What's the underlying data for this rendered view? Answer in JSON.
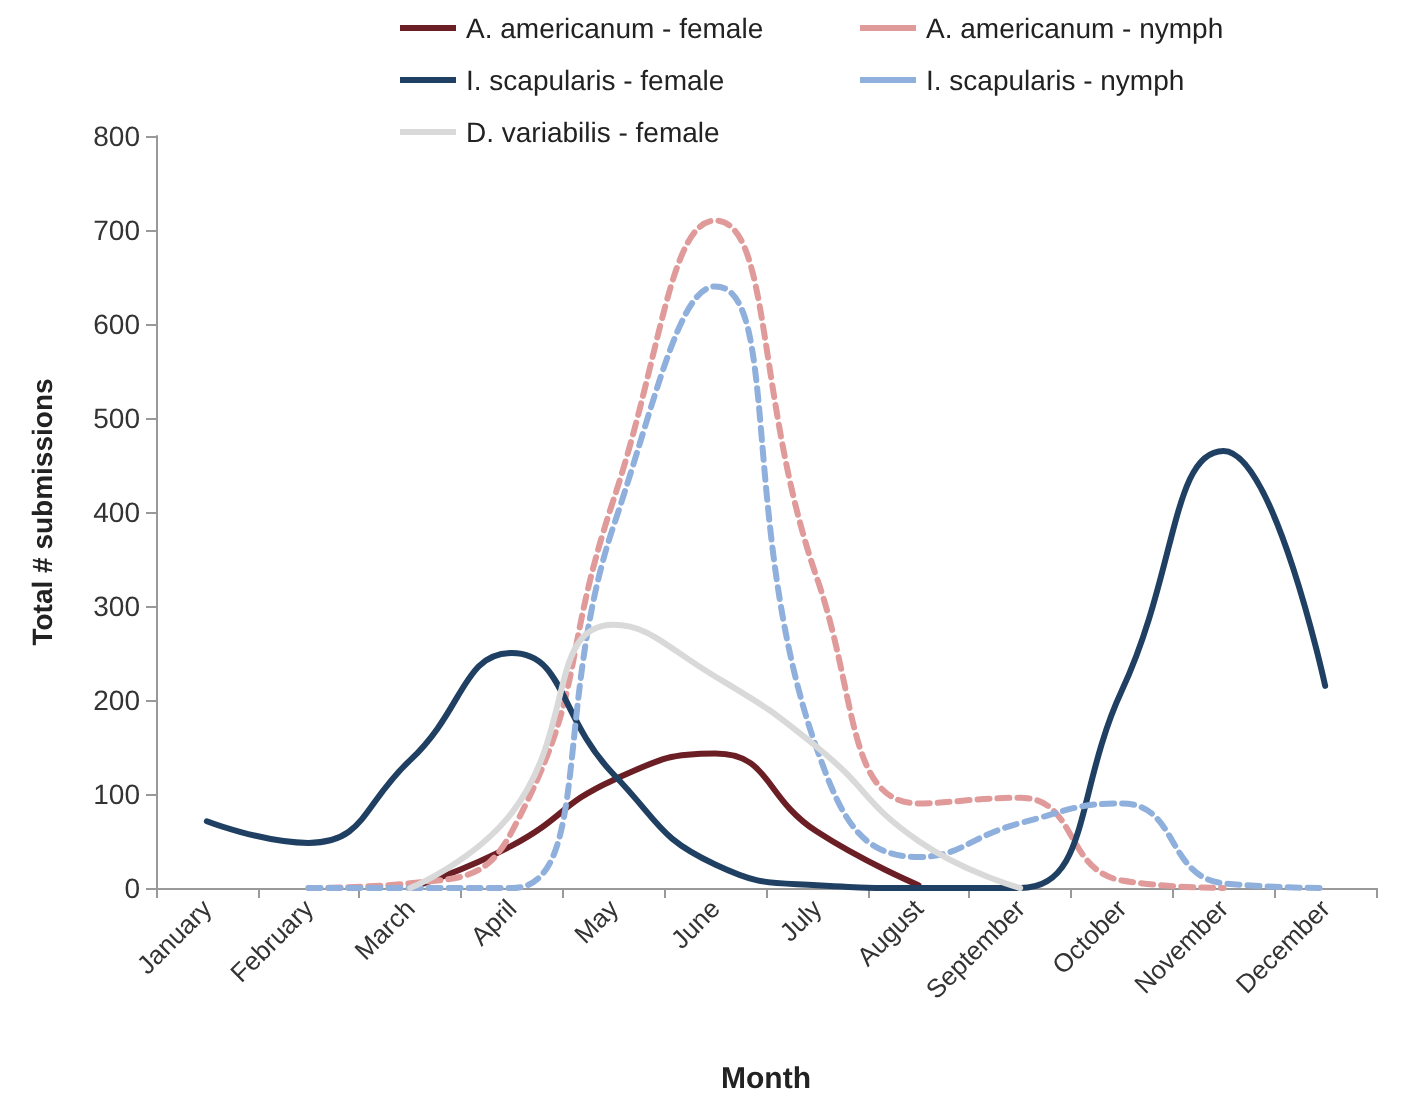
{
  "chart_data": {
    "type": "line",
    "xlabel": "Month",
    "ylabel": "Total # submissions",
    "categories": [
      "January",
      "February",
      "March",
      "April",
      "May",
      "June",
      "July",
      "August",
      "September",
      "October",
      "November",
      "December"
    ],
    "series": [
      {
        "name": "A. americanum - female",
        "color": "#6b1f24",
        "line_style": "solid",
        "values": [
          null,
          null,
          0,
          45,
          115,
          143,
          60,
          3,
          null,
          null,
          null,
          null
        ]
      },
      {
        "name": "A. americanum - nymph",
        "color": "#e09a9a",
        "line_style": "dashed",
        "values": [
          null,
          0,
          5,
          60,
          413,
          710,
          330,
          90,
          96,
          8,
          0,
          null
        ]
      },
      {
        "name": "I. scapularis - female",
        "color": "#1f3f63",
        "line_style": "solid",
        "values": [
          71,
          48,
          136,
          250,
          121,
          25,
          3,
          0,
          0,
          210,
          465,
          215
        ]
      },
      {
        "name": "I. scapularis - nymph",
        "color": "#8fb0dc",
        "line_style": "dashed",
        "values": [
          null,
          0,
          0,
          0,
          385,
          640,
          148,
          33,
          69,
          90,
          5,
          0
        ]
      },
      {
        "name": "D. variabilis - female",
        "color": "#d9d9d9",
        "line_style": "solid",
        "values": [
          null,
          null,
          0,
          80,
          280,
          225,
          150,
          50,
          0,
          null,
          null,
          null
        ]
      }
    ],
    "ylim": [
      0,
      800
    ],
    "yticks": [
      0,
      100,
      200,
      300,
      400,
      500,
      600,
      700,
      800
    ],
    "grid": false,
    "legend": "top",
    "marker": "none"
  }
}
